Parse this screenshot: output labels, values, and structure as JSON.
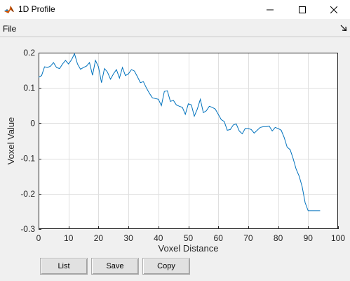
{
  "window": {
    "title": "1D Profile",
    "icon": "matlab-icon",
    "controls": [
      "minimize-icon",
      "maximize-icon",
      "close-icon"
    ]
  },
  "menu": {
    "file_label": "File",
    "dock_icon": "undock-arrow-icon"
  },
  "buttons": {
    "list": "List",
    "save": "Save",
    "copy": "Copy"
  },
  "colors": {
    "line": "#0072bd",
    "grid": "#dfdfdf",
    "axes": "#262626",
    "background": "#f0f0f0",
    "plot_bg": "#ffffff"
  },
  "chart_data": {
    "type": "line",
    "title": "",
    "xlabel": "Voxel Distance",
    "ylabel": "Voxel Value",
    "xlim": [
      0,
      100
    ],
    "ylim": [
      -0.3,
      0.2
    ],
    "grid": true,
    "xticks": [
      0,
      10,
      20,
      30,
      40,
      50,
      60,
      70,
      80,
      90,
      100
    ],
    "yticks": [
      0.2,
      0.1,
      0,
      -0.1,
      -0.2,
      -0.3
    ],
    "xtick_labels": [
      "0",
      "10",
      "20",
      "30",
      "40",
      "50",
      "60",
      "70",
      "80",
      "90",
      "100"
    ],
    "ytick_labels": [
      "0.2",
      "0.1",
      "0",
      "-0.1",
      "-0.2",
      "-0.3"
    ],
    "series": [
      {
        "x": [
          0,
          1,
          2,
          3,
          4,
          5,
          6,
          7,
          8,
          9,
          10,
          11,
          12,
          13,
          14,
          15,
          16,
          17,
          18,
          19,
          20,
          21,
          22,
          23,
          24,
          25,
          26,
          27,
          28,
          29,
          30,
          31,
          32,
          33,
          34,
          35,
          36,
          37,
          38,
          39,
          40,
          41,
          42,
          43,
          44,
          45,
          46,
          47,
          48,
          49,
          50,
          51,
          52,
          53,
          54,
          55,
          56,
          57,
          58,
          59,
          60,
          61,
          62,
          63,
          64,
          65,
          66,
          67,
          68,
          69,
          70,
          71,
          72,
          73,
          74,
          75,
          76,
          77,
          78,
          79,
          80,
          81,
          82,
          83,
          84,
          85,
          86,
          87,
          88,
          89,
          90,
          91,
          92,
          93,
          94
        ],
        "y": [
          0.13,
          0.135,
          0.16,
          0.158,
          0.162,
          0.172,
          0.158,
          0.155,
          0.168,
          0.178,
          0.168,
          0.18,
          0.197,
          0.168,
          0.153,
          0.158,
          0.162,
          0.172,
          0.136,
          0.178,
          0.16,
          0.115,
          0.155,
          0.145,
          0.125,
          0.14,
          0.152,
          0.128,
          0.158,
          0.135,
          0.14,
          0.152,
          0.148,
          0.132,
          0.115,
          0.118,
          0.1,
          0.085,
          0.072,
          0.07,
          0.068,
          0.05,
          0.09,
          0.092,
          0.062,
          0.065,
          0.052,
          0.048,
          0.045,
          0.025,
          0.055,
          0.052,
          0.02,
          0.04,
          0.068,
          0.03,
          0.035,
          0.048,
          0.045,
          0.04,
          0.025,
          0.01,
          0.005,
          -0.02,
          -0.018,
          -0.005,
          -0.002,
          -0.022,
          -0.03,
          -0.015,
          -0.015,
          -0.018,
          -0.028,
          -0.02,
          -0.012,
          -0.01,
          -0.01,
          -0.008,
          -0.022,
          -0.012,
          -0.015,
          -0.02,
          -0.04,
          -0.068,
          -0.075,
          -0.1,
          -0.13,
          -0.15,
          -0.18,
          -0.225,
          -0.248,
          -0.248,
          -0.248,
          -0.248,
          -0.248
        ]
      }
    ]
  }
}
